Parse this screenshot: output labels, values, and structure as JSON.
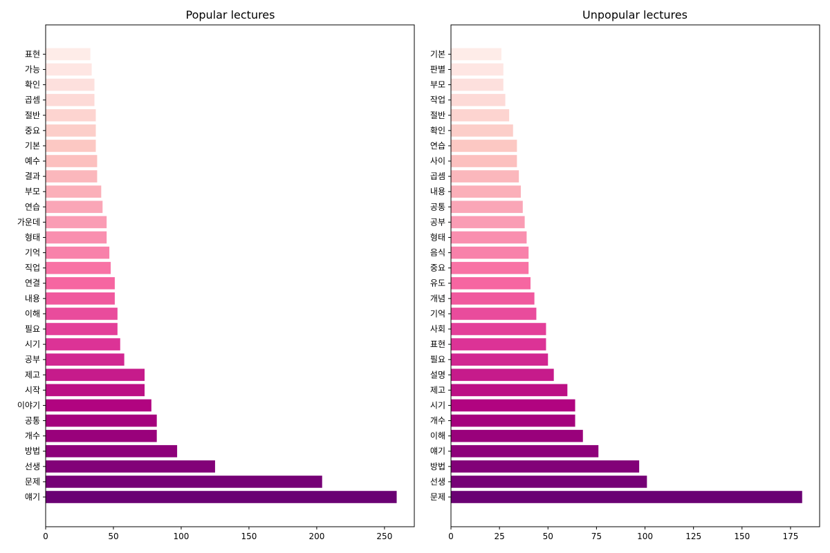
{
  "chart_data": [
    {
      "type": "bar",
      "orientation": "horizontal",
      "title": "Popular lectures",
      "xlabel": "",
      "ylabel": "",
      "xlim": [
        0,
        272
      ],
      "xticks": [
        0,
        50,
        100,
        150,
        200,
        250
      ],
      "grid": false,
      "categories": [
        "얘기",
        "문제",
        "선생",
        "방법",
        "개수",
        "공통",
        "이야기",
        "시작",
        "제고",
        "공부",
        "시기",
        "필요",
        "이해",
        "내용",
        "연결",
        "직업",
        "기억",
        "형태",
        "가운데",
        "연습",
        "부모",
        "결과",
        "예수",
        "기본",
        "중요",
        "절반",
        "곱셈",
        "확인",
        "가능",
        "표현"
      ],
      "values": [
        259,
        204,
        125,
        97,
        82,
        82,
        78,
        73,
        73,
        58,
        55,
        53,
        53,
        51,
        51,
        48,
        47,
        45,
        45,
        42,
        41,
        38,
        38,
        37,
        37,
        37,
        36,
        36,
        34,
        33
      ]
    },
    {
      "type": "bar",
      "orientation": "horizontal",
      "title": "Unpopular lectures",
      "xlabel": "",
      "ylabel": "",
      "xlim": [
        0,
        190
      ],
      "xticks": [
        0,
        25,
        50,
        75,
        100,
        125,
        150,
        175
      ],
      "grid": false,
      "categories": [
        "문제",
        "선생",
        "방법",
        "얘기",
        "이해",
        "개수",
        "시기",
        "제고",
        "설명",
        "필요",
        "표현",
        "사회",
        "기억",
        "개념",
        "유도",
        "중요",
        "음식",
        "형태",
        "공부",
        "공통",
        "내용",
        "곱셈",
        "사이",
        "연습",
        "확인",
        "절반",
        "작업",
        "부모",
        "판별",
        "기본"
      ],
      "values": [
        181,
        101,
        97,
        76,
        68,
        64,
        64,
        60,
        53,
        50,
        49,
        49,
        44,
        43,
        41,
        40,
        40,
        39,
        38,
        37,
        36,
        35,
        34,
        34,
        32,
        30,
        28,
        27,
        27,
        26
      ]
    }
  ]
}
